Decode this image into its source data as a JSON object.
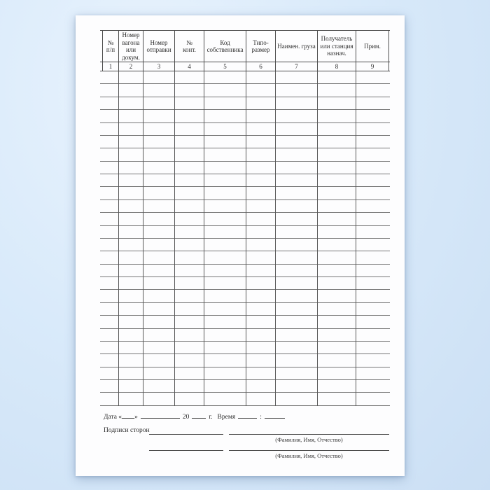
{
  "page": {
    "background_color": "#d9eafa",
    "paper_color": "#fdfdfe",
    "line_color": "#4d4d4d"
  },
  "table": {
    "columns": [
      {
        "num": "1",
        "label": "№\nп/п"
      },
      {
        "num": "2",
        "label": "Номер\nвагона\nили\nдокум."
      },
      {
        "num": "3",
        "label": "Номер\nотправки"
      },
      {
        "num": "4",
        "label": "№\nконт."
      },
      {
        "num": "5",
        "label": "Код\nсобственника"
      },
      {
        "num": "6",
        "label": "Типо-\nразмер"
      },
      {
        "num": "7",
        "label": "Наимен. груза"
      },
      {
        "num": "8",
        "label": "Получатель\nили станция\nназнач."
      },
      {
        "num": "9",
        "label": "Прим."
      }
    ],
    "empty_row_count": 26
  },
  "footer": {
    "date_prefix": "Дата «",
    "date_close": "»",
    "year": "20",
    "year_suffix": "г.",
    "time_label": "Время",
    "time_separator": ":",
    "signatures_label": "Подписи сторон",
    "name_caption_1": "(Фамилия, Имя, Отчество)",
    "name_caption_2": "(Фамилия, Имя, Отчество)"
  }
}
